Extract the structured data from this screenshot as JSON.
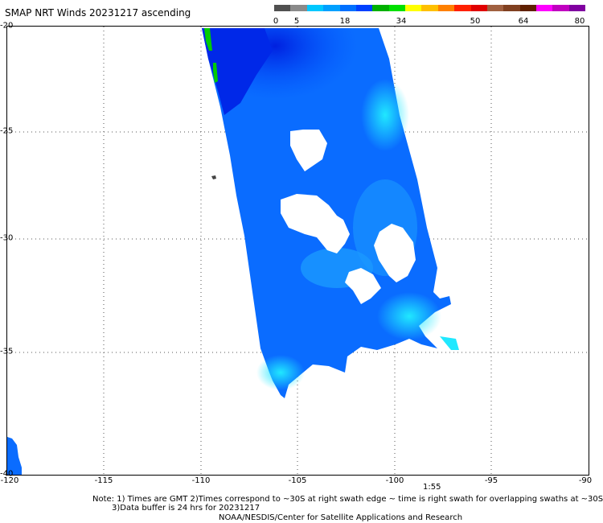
{
  "map": {
    "title": "SMAP NRT Winds 20231217 ascending",
    "colorbar": {
      "labels": [
        "0",
        "5",
        "18",
        "34",
        "50",
        "64",
        "80"
      ],
      "colors": [
        "#505050",
        "#8a8a8a",
        "#00c8ff",
        "#00a0ff",
        "#0070ff",
        "#0040ff",
        "#00b000",
        "#00e000",
        "#ffff00",
        "#ffc000",
        "#ff8000",
        "#ff2000",
        "#e00000",
        "#a06040",
        "#804020",
        "#602000",
        "#ff00ff",
        "#c000c0",
        "#8000a0"
      ]
    },
    "axes": {
      "lat_labels": [
        "-20",
        "-25",
        "-30",
        "-35"
      ],
      "lon_labels": [
        "-115",
        "-110",
        "-105",
        "-100",
        "-95"
      ],
      "corner_labels": {
        "y_bottom": "-40",
        "x_left": "-120",
        "x_right": "-90"
      }
    },
    "swath_time": "1:55",
    "notes": {
      "line1": "Note: 1) Times are GMT 2)Times correspond to ~30S at right swath edge ~ time is right swath for overlapping swaths at ~30S",
      "line2": "3)Data buffer is 24 hrs for 20231217"
    },
    "credit": "NOAA/NESDIS/Center for Satellite Applications and Research"
  }
}
